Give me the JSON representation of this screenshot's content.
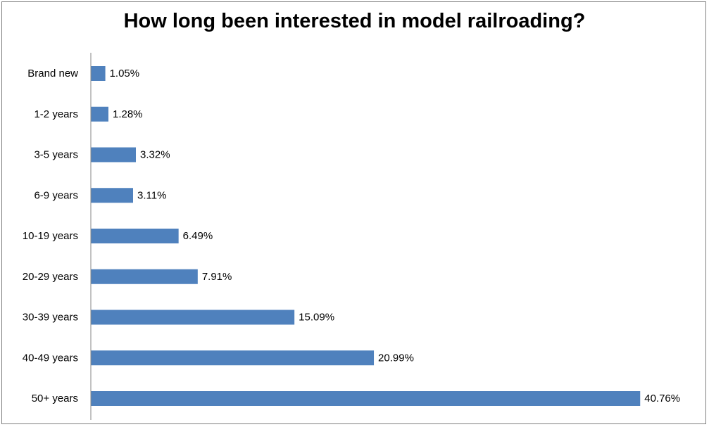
{
  "chart_data": {
    "type": "bar",
    "orientation": "horizontal",
    "title": "How long been interested in model railroading?",
    "categories": [
      "Brand new",
      "1-2 years",
      "3-5 years",
      "6-9 years",
      "10-19 years",
      "20-29 years",
      "30-39 years",
      "40-49 years",
      "50+ years"
    ],
    "values": [
      1.05,
      1.28,
      3.32,
      3.11,
      6.49,
      7.91,
      15.09,
      20.99,
      40.76
    ],
    "data_labels": [
      "1.05%",
      "1.28%",
      "3.32%",
      "3.11%",
      "6.49%",
      "7.91%",
      "15.09%",
      "20.99%",
      "40.76%"
    ],
    "xlim": [
      0,
      42
    ],
    "grid": false,
    "legend": "none",
    "bar_color": "#4f81bd"
  }
}
